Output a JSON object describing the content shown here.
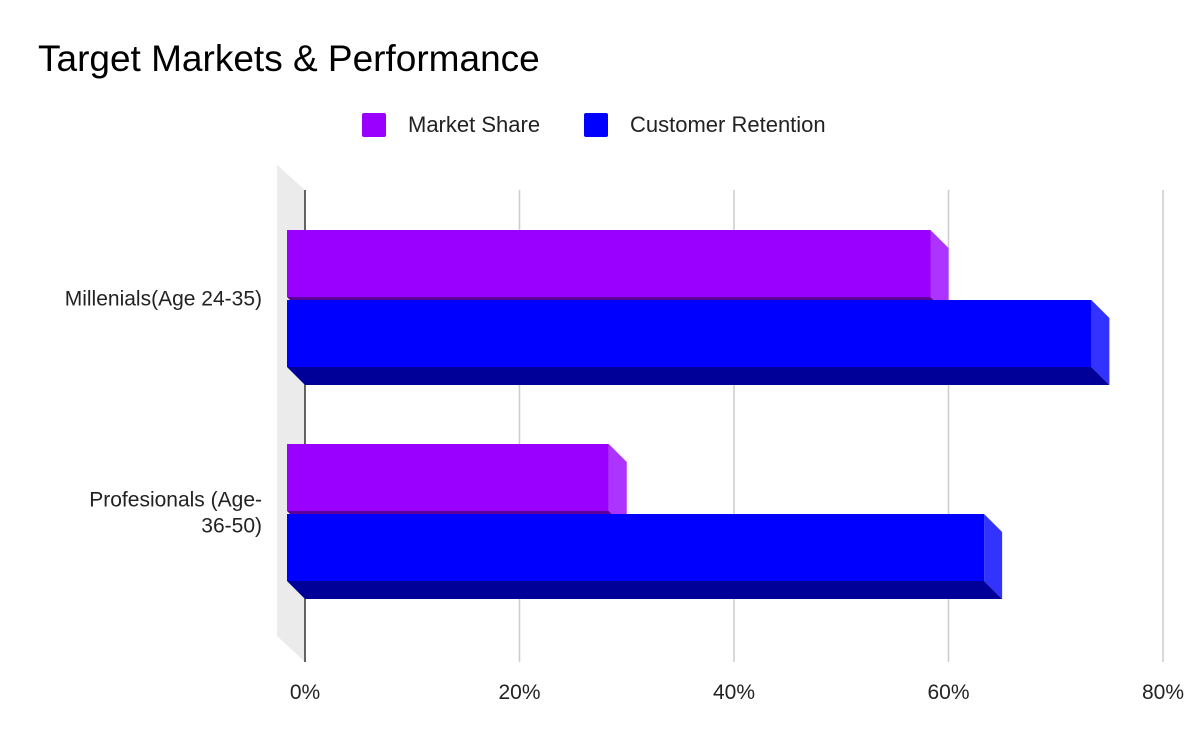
{
  "chart_data": {
    "type": "bar",
    "orientation": "horizontal",
    "style": "3d",
    "title": "Target Markets & Performance",
    "categories": [
      "Millenials(Age 24-35)",
      "Profesionals (Age-36-50)"
    ],
    "category_lines": [
      [
        "Millenials(Age 24-35)"
      ],
      [
        "Profesionals (Age-",
        "36-50)"
      ]
    ],
    "series": [
      {
        "name": "Market Share",
        "values": [
          60,
          30
        ],
        "color": "#9900ff"
      },
      {
        "name": "Customer Retention",
        "values": [
          75,
          65
        ],
        "color": "#0000ff"
      }
    ],
    "xlim": [
      0,
      80
    ],
    "xticks": [
      0,
      20,
      40,
      60,
      80
    ],
    "xtick_labels": [
      "0%",
      "20%",
      "40%",
      "60%",
      "80%"
    ],
    "grid": true,
    "legend_position": "top-center"
  }
}
